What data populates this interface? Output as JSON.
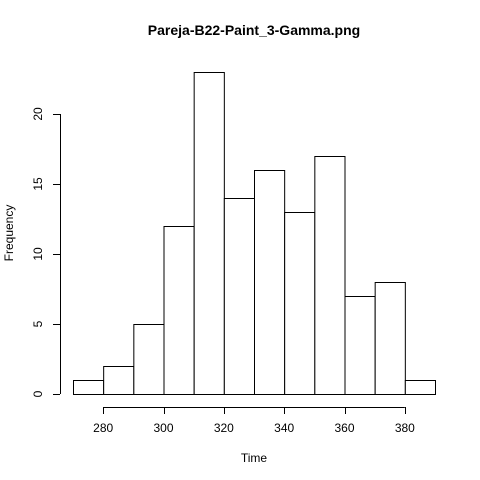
{
  "chart_data": {
    "type": "bar",
    "title": "Pareja-B22-Paint_3-Gamma.png",
    "xlabel": "Time",
    "ylabel": "Frequency",
    "bins": [
      {
        "from": 270,
        "to": 280,
        "count": 1
      },
      {
        "from": 280,
        "to": 290,
        "count": 2
      },
      {
        "from": 290,
        "to": 300,
        "count": 5
      },
      {
        "from": 300,
        "to": 310,
        "count": 12
      },
      {
        "from": 310,
        "to": 320,
        "count": 23
      },
      {
        "from": 320,
        "to": 330,
        "count": 14
      },
      {
        "from": 330,
        "to": 340,
        "count": 16
      },
      {
        "from": 340,
        "to": 350,
        "count": 13
      },
      {
        "from": 350,
        "to": 360,
        "count": 17
      },
      {
        "from": 360,
        "to": 370,
        "count": 7
      },
      {
        "from": 370,
        "to": 380,
        "count": 8
      },
      {
        "from": 380,
        "to": 390,
        "count": 1
      }
    ],
    "xlim": [
      270,
      390
    ],
    "ylim": [
      0,
      23
    ],
    "x_ticks": [
      "280",
      "300",
      "320",
      "340",
      "360",
      "380"
    ],
    "y_ticks": [
      "0",
      "5",
      "10",
      "15",
      "20"
    ],
    "grid": false
  }
}
